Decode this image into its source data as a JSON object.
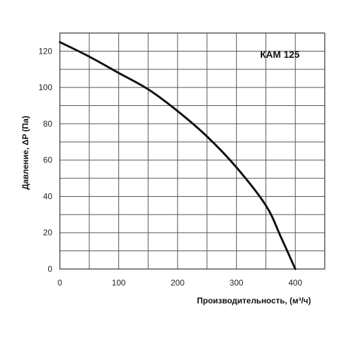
{
  "chart_data": {
    "type": "line",
    "title": "",
    "xlabel": "Производительность, (м³/ч)",
    "ylabel": "Давление, ΔP (Па)",
    "xlim": [
      0,
      450
    ],
    "ylim": [
      0,
      130
    ],
    "x_ticks": [
      0,
      100,
      200,
      300,
      400
    ],
    "y_ticks": [
      0,
      20,
      40,
      60,
      80,
      100,
      120
    ],
    "grid": true,
    "series": [
      {
        "name": "КАМ 125",
        "x": [
          0,
          50,
          100,
          150,
          200,
          250,
          300,
          350,
          375,
          400
        ],
        "y": [
          125,
          117,
          108,
          99,
          87,
          73,
          56,
          35,
          18,
          0
        ]
      }
    ]
  }
}
